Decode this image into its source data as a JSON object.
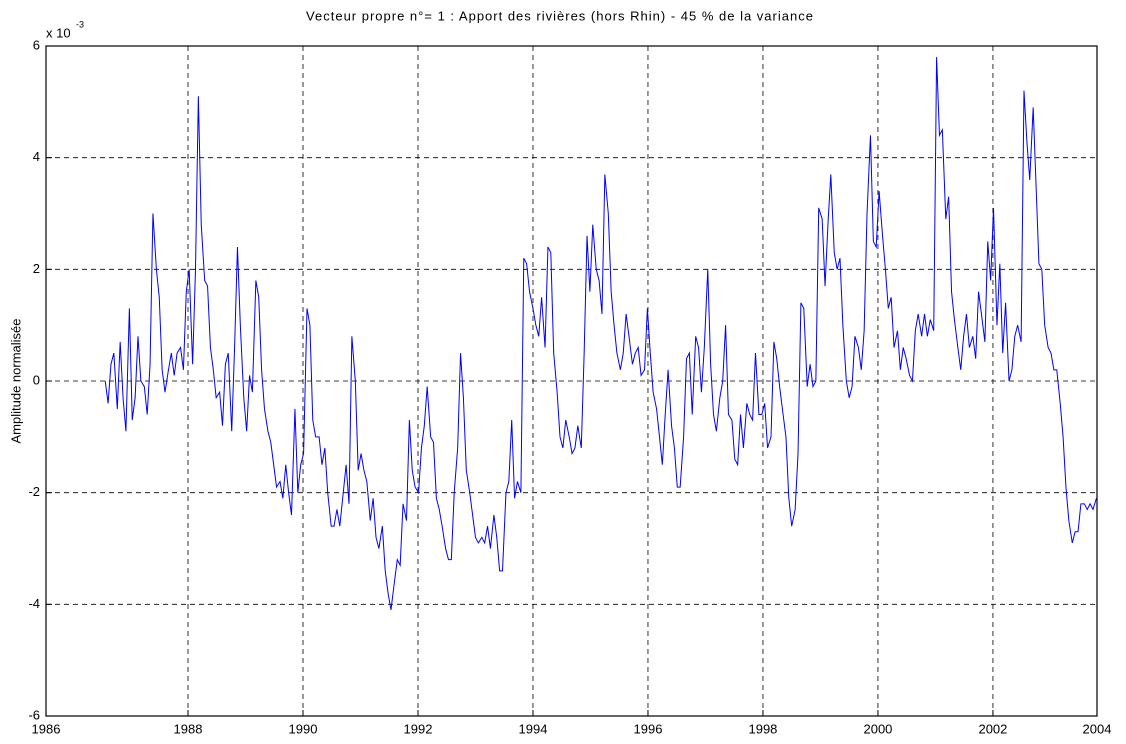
{
  "chart_data": {
    "type": "line",
    "title": "Vecteur propre n°= 1 : Apport des rivières (hors Rhin) - 45 % de la variance",
    "ylabel": "Amplitude normalisée",
    "y_multiplier": {
      "base": "x 10",
      "exponent": "-3"
    },
    "color": "#0000ff",
    "grid": true,
    "xlim": [
      1985.53,
      2003.81
    ],
    "xticks": [
      {
        "value": 1985.53,
        "label": "1986"
      },
      1988,
      1990,
      1992,
      1994,
      1996,
      1998,
      2000,
      2002,
      {
        "value": 2003.81,
        "label": "2004"
      }
    ],
    "ylim": [
      -6,
      6
    ],
    "yticks": [
      -6,
      -4,
      -2,
      0,
      2,
      4,
      6
    ],
    "x": [
      1986.56,
      1986.61,
      1986.66,
      1986.71,
      1986.77,
      1986.82,
      1986.87,
      1986.92,
      1986.98,
      1987.03,
      1987.08,
      1987.13,
      1987.18,
      1987.24,
      1987.29,
      1987.34,
      1987.39,
      1987.45,
      1987.5,
      1987.55,
      1987.6,
      1987.66,
      1987.71,
      1987.76,
      1987.81,
      1987.87,
      1987.92,
      1987.97,
      1988.02,
      1988.08,
      1988.13,
      1988.18,
      1988.23,
      1988.29,
      1988.34,
      1988.39,
      1988.44,
      1988.49,
      1988.55,
      1988.6,
      1988.65,
      1988.7,
      1988.76,
      1988.81,
      1988.86,
      1988.91,
      1988.97,
      1989.02,
      1989.07,
      1989.12,
      1989.18,
      1989.23,
      1989.28,
      1989.33,
      1989.39,
      1989.44,
      1989.49,
      1989.54,
      1989.6,
      1989.65,
      1989.7,
      1989.75,
      1989.8,
      1989.86,
      1989.91,
      1989.96,
      1990.01,
      1990.07,
      1990.12,
      1990.17,
      1990.22,
      1990.28,
      1990.33,
      1990.38,
      1990.43,
      1990.49,
      1990.54,
      1990.59,
      1990.64,
      1990.7,
      1990.75,
      1990.8,
      1990.85,
      1990.91,
      1990.96,
      1991.01,
      1991.06,
      1991.11,
      1991.17,
      1991.22,
      1991.27,
      1991.32,
      1991.38,
      1991.43,
      1991.48,
      1991.53,
      1991.59,
      1991.64,
      1991.69,
      1991.74,
      1991.8,
      1991.85,
      1991.9,
      1991.95,
      1992.01,
      1992.06,
      1992.11,
      1992.16,
      1992.22,
      1992.27,
      1992.32,
      1992.37,
      1992.42,
      1992.48,
      1992.53,
      1992.58,
      1992.63,
      1992.69,
      1992.74,
      1992.79,
      1992.84,
      1992.9,
      1992.95,
      1993.0,
      1993.05,
      1993.11,
      1993.16,
      1993.21,
      1993.26,
      1993.32,
      1993.37,
      1993.42,
      1993.47,
      1993.53,
      1993.58,
      1993.63,
      1993.68,
      1993.73,
      1993.79,
      1993.84,
      1993.89,
      1993.94,
      1994.0,
      1994.05,
      1994.1,
      1994.15,
      1994.21,
      1994.26,
      1994.31,
      1994.36,
      1994.42,
      1994.47,
      1994.52,
      1994.57,
      1994.63,
      1994.68,
      1994.73,
      1994.78,
      1994.84,
      1994.89,
      1994.94,
      1994.99,
      1995.04,
      1995.1,
      1995.15,
      1995.2,
      1995.25,
      1995.31,
      1995.36,
      1995.41,
      1995.46,
      1995.52,
      1995.57,
      1995.62,
      1995.67,
      1995.73,
      1995.78,
      1995.83,
      1995.88,
      1995.94,
      1995.99,
      1996.04,
      1996.09,
      1996.15,
      1996.2,
      1996.25,
      1996.3,
      1996.35,
      1996.41,
      1996.46,
      1996.51,
      1996.56,
      1996.62,
      1996.67,
      1996.72,
      1996.77,
      1996.83,
      1996.88,
      1996.93,
      1996.98,
      1997.04,
      1997.09,
      1997.14,
      1997.19,
      1997.25,
      1997.3,
      1997.35,
      1997.4,
      1997.46,
      1997.51,
      1997.56,
      1997.61,
      1997.66,
      1997.72,
      1997.77,
      1997.82,
      1997.87,
      1997.93,
      1997.98,
      1998.03,
      1998.08,
      1998.14,
      1998.19,
      1998.24,
      1998.29,
      1998.35,
      1998.4,
      1998.45,
      1998.5,
      1998.56,
      1998.61,
      1998.66,
      1998.71,
      1998.77,
      1998.82,
      1998.87,
      1998.92,
      1998.97,
      1999.03,
      1999.08,
      1999.13,
      1999.18,
      1999.24,
      1999.29,
      1999.34,
      1999.39,
      1999.45,
      1999.5,
      1999.55,
      1999.6,
      1999.66,
      1999.71,
      1999.76,
      1999.81,
      1999.87,
      1999.92,
      1999.97,
      2000.02,
      2000.08,
      2000.13,
      2000.18,
      2000.23,
      2000.28,
      2000.34,
      2000.39,
      2000.44,
      2000.49,
      2000.55,
      2000.6,
      2000.65,
      2000.7,
      2000.76,
      2000.81,
      2000.86,
      2000.91,
      2000.97,
      2001.02,
      2001.07,
      2001.12,
      2001.18,
      2001.23,
      2001.28,
      2001.33,
      2001.39,
      2001.44,
      2001.49,
      2001.54,
      2001.59,
      2001.65,
      2001.7,
      2001.75,
      2001.8,
      2001.86,
      2001.91,
      2001.96,
      2002.01,
      2002.07,
      2002.12,
      2002.17,
      2002.22,
      2002.28,
      2002.33,
      2002.38,
      2002.43,
      2002.49,
      2002.54,
      2002.59,
      2002.64,
      2002.7,
      2002.75,
      2002.8,
      2002.85,
      2002.9,
      2002.96,
      2003.01,
      2003.06,
      2003.11,
      2003.17,
      2003.22,
      2003.27,
      2003.32,
      2003.38,
      2003.43,
      2003.48,
      2003.53,
      2003.59,
      2003.64,
      2003.69,
      2003.74,
      2003.8
    ],
    "values": [
      0,
      -0.4,
      0.3,
      0.5,
      -0.5,
      0.7,
      -0.3,
      -0.9,
      1.3,
      -0.7,
      -0.3,
      0.8,
      0,
      -0.1,
      -0.6,
      0.3,
      3.0,
      2.0,
      1.5,
      0.2,
      -0.2,
      0.2,
      0.5,
      0.1,
      0.5,
      0.6,
      0.2,
      1.6,
      2.0,
      0.3,
      2.0,
      5.1,
      2.8,
      1.8,
      1.7,
      0.6,
      0.2,
      -0.3,
      -0.2,
      -0.8,
      0.3,
      0.5,
      -0.9,
      0.6,
      2.4,
      1.0,
      -0.3,
      -0.9,
      0.1,
      -0.2,
      1.8,
      1.5,
      0.2,
      -0.5,
      -0.9,
      -1.1,
      -1.5,
      -1.9,
      -1.8,
      -2.1,
      -1.5,
      -2.0,
      -2.4,
      -0.5,
      -2.0,
      -1.5,
      -1.3,
      1.3,
      1.0,
      -0.7,
      -1.0,
      -1.0,
      -1.5,
      -1.2,
      -2.0,
      -2.6,
      -2.6,
      -2.3,
      -2.6,
      -2.0,
      -1.5,
      -2.2,
      0.8,
      0.0,
      -1.6,
      -1.3,
      -1.6,
      -1.8,
      -2.5,
      -2.1,
      -2.8,
      -3.0,
      -2.6,
      -3.4,
      -3.8,
      -4.1,
      -3.6,
      -3.2,
      -3.3,
      -2.2,
      -2.5,
      -0.7,
      -1.6,
      -1.9,
      -2.0,
      -1.2,
      -0.8,
      -0.1,
      -1.0,
      -1.1,
      -2.1,
      -2.3,
      -2.6,
      -3.0,
      -3.2,
      -3.2,
      -2.0,
      -1.2,
      0.5,
      -0.3,
      -1.6,
      -2.0,
      -2.4,
      -2.8,
      -2.9,
      -2.8,
      -2.9,
      -2.6,
      -3.0,
      -2.4,
      -2.8,
      -3.4,
      -3.4,
      -2.0,
      -1.8,
      -0.7,
      -2.1,
      -1.8,
      -2.0,
      2.2,
      2.1,
      1.6,
      1.3,
      1.0,
      0.8,
      1.5,
      0.6,
      2.4,
      2.3,
      0.5,
      -0.2,
      -1.0,
      -1.2,
      -0.7,
      -1.0,
      -1.3,
      -1.2,
      -0.8,
      -1.2,
      0.5,
      2.6,
      1.6,
      2.8,
      2.0,
      1.8,
      1.2,
      3.7,
      3.0,
      1.6,
      1.0,
      0.5,
      0.2,
      0.5,
      1.2,
      0.8,
      0.3,
      0.5,
      0.6,
      0.1,
      0.2,
      1.3,
      0.5,
      -0.2,
      -0.5,
      -1.0,
      -1.5,
      -0.6,
      0.2,
      -0.8,
      -1.2,
      -1.9,
      -1.9,
      -1.0,
      0.4,
      0.5,
      -0.6,
      0.8,
      0.6,
      -0.2,
      0.6,
      2.0,
      0.3,
      -0.6,
      -0.9,
      -0.3,
      0.0,
      1.0,
      -0.6,
      -0.7,
      -1.4,
      -1.5,
      -0.6,
      -1.2,
      -0.4,
      -0.6,
      -0.7,
      0.5,
      -0.6,
      -0.6,
      -0.4,
      -1.2,
      -1.0,
      0.7,
      0.4,
      -0.1,
      -0.6,
      -1.0,
      -2.1,
      -2.6,
      -2.3,
      -1.3,
      1.4,
      1.3,
      -0.1,
      0.3,
      -0.1,
      0.0,
      3.1,
      2.9,
      1.7,
      2.8,
      3.7,
      2.3,
      2.0,
      2.2,
      1.0,
      0.0,
      -0.3,
      -0.1,
      0.8,
      0.6,
      0.2,
      0.9,
      3.0,
      4.4,
      2.5,
      2.4,
      3.4,
      2.6,
      2.0,
      1.3,
      1.5,
      0.6,
      0.9,
      0.2,
      0.6,
      0.4,
      0.1,
      0.0,
      0.9,
      1.2,
      0.8,
      1.2,
      0.8,
      1.1,
      0.9,
      5.8,
      4.4,
      4.5,
      2.9,
      3.3,
      1.6,
      1.1,
      0.6,
      0.2,
      0.8,
      1.2,
      0.6,
      0.8,
      0.4,
      1.6,
      1.2,
      0.7,
      2.5,
      1.8,
      3.1,
      1.0,
      2.1,
      0.5,
      1.4,
      0.0,
      0.2,
      0.8,
      1.0,
      0.7,
      5.2,
      4.3,
      3.6,
      4.9,
      3.5,
      2.1,
      2.0,
      1.0,
      0.6,
      0.5,
      0.2,
      0.2,
      -0.4,
      -1.0,
      -1.9,
      -2.5,
      -2.9,
      -2.7,
      -2.7,
      -2.2,
      -2.2,
      -2.3,
      -2.2,
      -2.3,
      -2.1
    ]
  }
}
